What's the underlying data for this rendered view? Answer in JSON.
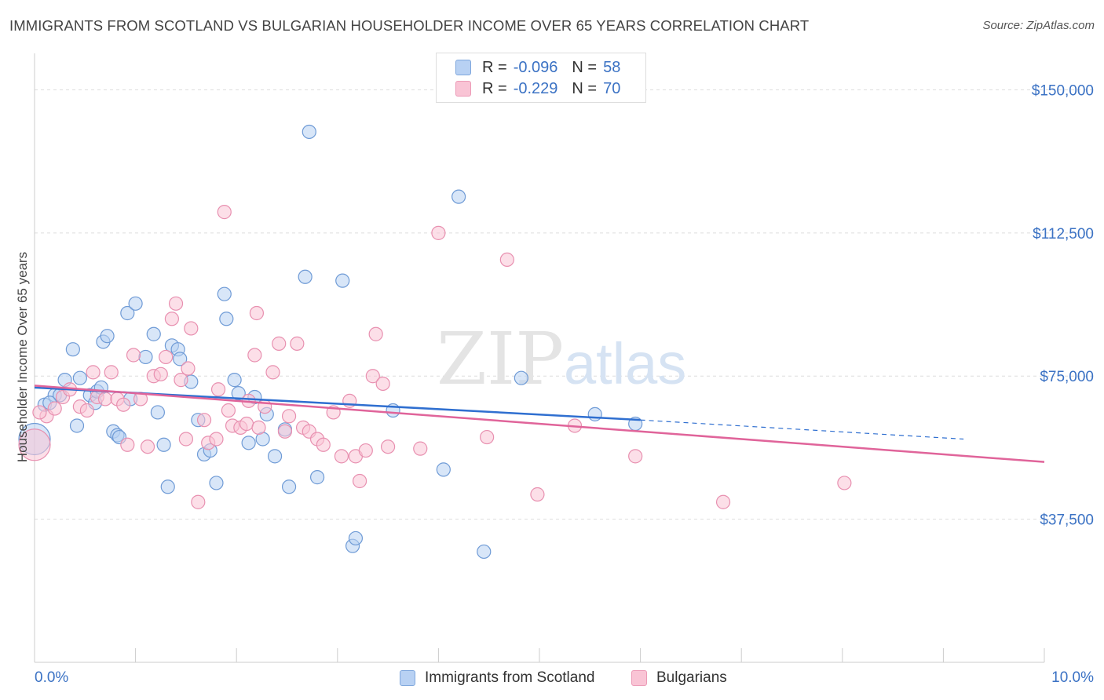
{
  "title": "IMMIGRANTS FROM SCOTLAND VS BULGARIAN HOUSEHOLDER INCOME OVER 65 YEARS CORRELATION CHART",
  "source": "Source: ZipAtlas.com",
  "watermark": {
    "zip": "ZIP",
    "atlas": "atlas"
  },
  "colors": {
    "blue": "#3b72c4",
    "blue_fill": "#b8d1f3",
    "pink": "#e0649a",
    "pink_fill": "#f9c4d5",
    "grid": "#dddddd"
  },
  "legend": {
    "r_label": "R =",
    "n_label": "N =",
    "rows": [
      {
        "series": "Immigrants from Scotland",
        "r": "-0.096",
        "n": "58"
      },
      {
        "series": "Bulgarians",
        "r": "-0.229",
        "n": "70"
      }
    ]
  },
  "bottom_legend": [
    "Immigrants from Scotland",
    "Bulgarians"
  ],
  "chart_data": {
    "type": "scatter",
    "xlabel": "",
    "ylabel": "Householder Income Over 65 years",
    "xlim": [
      0,
      10
    ],
    "ylim": [
      0,
      157500
    ],
    "x_tick_labels": [
      "0.0%",
      "10.0%"
    ],
    "y_ticks": [
      37500,
      75000,
      112500,
      150000
    ],
    "y_tick_labels": [
      "$37,500",
      "$75,000",
      "$112,500",
      "$150,000"
    ],
    "grid": true,
    "legend_position": "top-center",
    "series": [
      {
        "name": "Immigrants from Scotland",
        "color": "#3b72c4",
        "trend": {
          "x": [
            0,
            6.0
          ],
          "y": [
            72000,
            63500
          ],
          "dashed_to_x": 9.2,
          "dashed_to_y": 58500
        },
        "points": [
          [
            0.0,
            58500
          ],
          [
            0.1,
            67500
          ],
          [
            0.2,
            70000
          ],
          [
            0.25,
            70000
          ],
          [
            0.3,
            74000
          ],
          [
            0.38,
            82000
          ],
          [
            0.42,
            62000
          ],
          [
            0.45,
            74500
          ],
          [
            0.55,
            70000
          ],
          [
            0.6,
            68000
          ],
          [
            0.62,
            71000
          ],
          [
            0.66,
            72000
          ],
          [
            0.68,
            84000
          ],
          [
            0.72,
            85500
          ],
          [
            0.78,
            60500
          ],
          [
            0.82,
            59500
          ],
          [
            0.84,
            59000
          ],
          [
            0.92,
            91500
          ],
          [
            0.95,
            69000
          ],
          [
            1.0,
            94000
          ],
          [
            1.1,
            80000
          ],
          [
            1.18,
            86000
          ],
          [
            1.22,
            65500
          ],
          [
            1.28,
            57000
          ],
          [
            1.32,
            46000
          ],
          [
            1.36,
            83000
          ],
          [
            1.42,
            82000
          ],
          [
            1.44,
            79500
          ],
          [
            1.55,
            73500
          ],
          [
            1.62,
            63500
          ],
          [
            1.68,
            54500
          ],
          [
            1.74,
            55500
          ],
          [
            1.8,
            47000
          ],
          [
            1.88,
            96500
          ],
          [
            1.9,
            90000
          ],
          [
            1.98,
            74000
          ],
          [
            2.02,
            70500
          ],
          [
            2.12,
            57500
          ],
          [
            2.18,
            69500
          ],
          [
            2.26,
            58500
          ],
          [
            2.3,
            65000
          ],
          [
            2.38,
            54000
          ],
          [
            2.48,
            61000
          ],
          [
            2.52,
            46000
          ],
          [
            2.68,
            101000
          ],
          [
            2.72,
            139000
          ],
          [
            2.8,
            48500
          ],
          [
            3.05,
            100000
          ],
          [
            3.15,
            30500
          ],
          [
            3.18,
            32500
          ],
          [
            3.55,
            66000
          ],
          [
            4.05,
            50500
          ],
          [
            4.2,
            122000
          ],
          [
            4.45,
            29000
          ],
          [
            4.82,
            74500
          ],
          [
            5.55,
            65000
          ],
          [
            5.95,
            62500
          ],
          [
            0.15,
            68000
          ]
        ]
      },
      {
        "name": "Bulgarians",
        "color": "#e0649a",
        "trend": {
          "x": [
            0,
            10
          ],
          "y": [
            72500,
            52500
          ]
        },
        "points": [
          [
            0.0,
            57000
          ],
          [
            0.12,
            64500
          ],
          [
            0.2,
            66500
          ],
          [
            0.28,
            69500
          ],
          [
            0.35,
            71500
          ],
          [
            0.45,
            67000
          ],
          [
            0.52,
            66000
          ],
          [
            0.58,
            76000
          ],
          [
            0.62,
            69500
          ],
          [
            0.7,
            69000
          ],
          [
            0.76,
            76000
          ],
          [
            0.82,
            69000
          ],
          [
            0.88,
            67500
          ],
          [
            0.92,
            57000
          ],
          [
            0.98,
            80500
          ],
          [
            1.05,
            69000
          ],
          [
            1.12,
            56500
          ],
          [
            1.18,
            75000
          ],
          [
            1.25,
            75500
          ],
          [
            1.3,
            80000
          ],
          [
            1.36,
            90000
          ],
          [
            1.4,
            94000
          ],
          [
            1.45,
            74000
          ],
          [
            1.5,
            58500
          ],
          [
            1.52,
            77000
          ],
          [
            1.55,
            87500
          ],
          [
            1.62,
            42000
          ],
          [
            1.68,
            63500
          ],
          [
            1.72,
            57500
          ],
          [
            1.8,
            58500
          ],
          [
            1.82,
            71500
          ],
          [
            1.88,
            118000
          ],
          [
            1.92,
            66000
          ],
          [
            1.96,
            62000
          ],
          [
            2.04,
            61500
          ],
          [
            2.1,
            62500
          ],
          [
            2.12,
            68500
          ],
          [
            2.18,
            80500
          ],
          [
            2.2,
            91500
          ],
          [
            2.22,
            61500
          ],
          [
            2.28,
            67000
          ],
          [
            2.36,
            76000
          ],
          [
            2.42,
            83500
          ],
          [
            2.48,
            60500
          ],
          [
            2.52,
            64500
          ],
          [
            2.6,
            83500
          ],
          [
            2.66,
            61500
          ],
          [
            2.72,
            60500
          ],
          [
            2.8,
            58500
          ],
          [
            2.86,
            57000
          ],
          [
            2.96,
            65500
          ],
          [
            3.04,
            54000
          ],
          [
            3.12,
            68500
          ],
          [
            3.18,
            54000
          ],
          [
            3.22,
            47500
          ],
          [
            3.28,
            55500
          ],
          [
            3.35,
            75000
          ],
          [
            3.38,
            86000
          ],
          [
            3.45,
            73000
          ],
          [
            3.5,
            56500
          ],
          [
            3.82,
            56000
          ],
          [
            4.0,
            112500
          ],
          [
            4.48,
            59000
          ],
          [
            4.68,
            105500
          ],
          [
            4.98,
            44000
          ],
          [
            5.35,
            62000
          ],
          [
            5.95,
            54000
          ],
          [
            6.82,
            42000
          ],
          [
            8.02,
            47000
          ],
          [
            0.05,
            65500
          ]
        ]
      }
    ]
  }
}
